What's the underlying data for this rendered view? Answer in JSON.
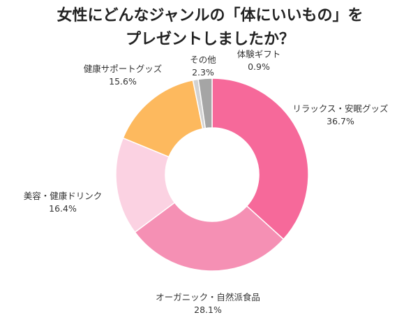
{
  "title": {
    "line1": "女性にどんなジャンルの「体にいいもの」を",
    "line2": "プレゼントしましたか？"
  },
  "chart_data": {
    "type": "pie",
    "style": "donut",
    "title": "女性にどんなジャンルの「体にいいもの」をプレゼントしましたか？",
    "start": "12 o'clock, clockwise",
    "slices": [
      {
        "label": "リラックス・安眠グッズ",
        "value": 36.7,
        "value_label": "36.7%",
        "color": "#F6699A"
      },
      {
        "label": "オーガニック・自然派食品",
        "value": 28.1,
        "value_label": "28.1%",
        "color": "#F590B4"
      },
      {
        "label": "美容・健康ドリンク",
        "value": 16.4,
        "value_label": "16.4%",
        "color": "#FBD2E2"
      },
      {
        "label": "健康サポートグッズ",
        "value": 15.6,
        "value_label": "15.6%",
        "color": "#FDB95E"
      },
      {
        "label": "体験ギフト",
        "value": 0.9,
        "value_label": "0.9%",
        "color": "#D2D2D2"
      },
      {
        "label": "その他",
        "value": 2.3,
        "value_label": "2.3%",
        "color": "#A5A5A5"
      }
    ]
  }
}
